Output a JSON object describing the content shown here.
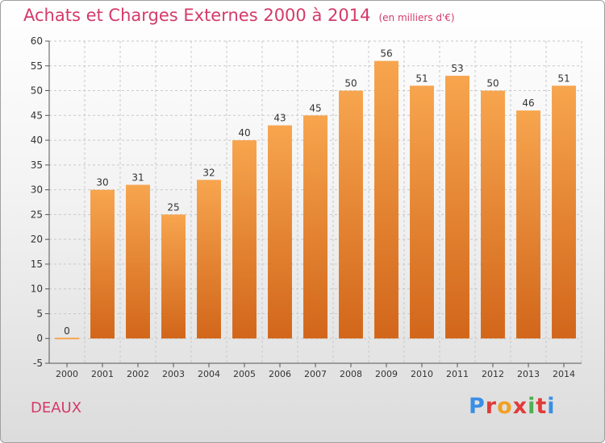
{
  "header": {
    "title": "Achats et Charges Externes 2000 à 2014",
    "unit": "(en milliers d'€)"
  },
  "footer": {
    "commune": "DEAUX",
    "logo": "Proxiti",
    "logo_colors": [
      "#3a8ee6",
      "#e23a3a",
      "#f2a024",
      "#e23a3a",
      "#4caf50",
      "#e23a3a",
      "#3a8ee6"
    ]
  },
  "chart_data": {
    "type": "bar",
    "categories": [
      "2000",
      "2001",
      "2002",
      "2003",
      "2004",
      "2005",
      "2006",
      "2007",
      "2008",
      "2009",
      "2010",
      "2011",
      "2012",
      "2013",
      "2014"
    ],
    "values": [
      0,
      30,
      31,
      25,
      32,
      40,
      43,
      45,
      50,
      56,
      51,
      53,
      50,
      46,
      51
    ],
    "ylim": [
      -5,
      60
    ],
    "yticks": [
      -5,
      0,
      5,
      10,
      15,
      20,
      25,
      30,
      35,
      40,
      45,
      50,
      55,
      60
    ],
    "grid": true,
    "legend": "none",
    "colors": {
      "bar_top": "#f7a54e",
      "bar_bottom": "#d2661a",
      "grid": "#c8c8c8",
      "axis": "#555555",
      "label": "#333333"
    }
  }
}
